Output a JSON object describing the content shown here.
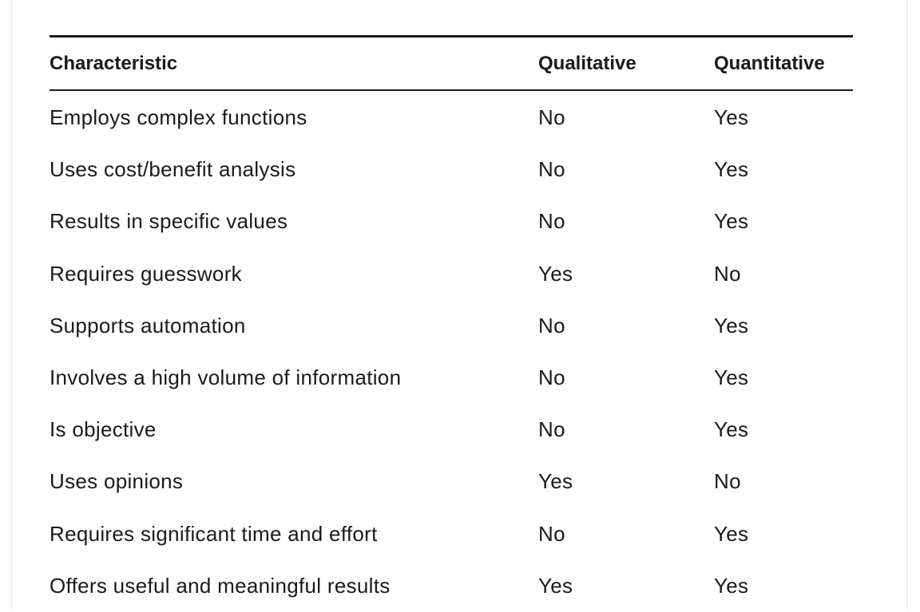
{
  "table": {
    "headers": {
      "characteristic": "Characteristic",
      "qualitative": "Qualitative",
      "quantitative": "Quantitative"
    },
    "rows": [
      {
        "characteristic": "Employs complex functions",
        "qualitative": "No",
        "quantitative": "Yes"
      },
      {
        "characteristic": "Uses cost/benefit analysis",
        "qualitative": "No",
        "quantitative": "Yes"
      },
      {
        "characteristic": "Results in specific values",
        "qualitative": "No",
        "quantitative": "Yes"
      },
      {
        "characteristic": "Requires guesswork",
        "qualitative": "Yes",
        "quantitative": "No"
      },
      {
        "characteristic": "Supports automation",
        "qualitative": "No",
        "quantitative": "Yes"
      },
      {
        "characteristic": "Involves a high volume of information",
        "qualitative": "No",
        "quantitative": "Yes"
      },
      {
        "characteristic": "Is objective",
        "qualitative": "No",
        "quantitative": "Yes"
      },
      {
        "characteristic": "Uses opinions",
        "qualitative": "Yes",
        "quantitative": "No"
      },
      {
        "characteristic": "Requires significant time and effort",
        "qualitative": "No",
        "quantitative": "Yes"
      },
      {
        "characteristic": "Offers useful and meaningful results",
        "qualitative": "Yes",
        "quantitative": "Yes"
      }
    ]
  }
}
